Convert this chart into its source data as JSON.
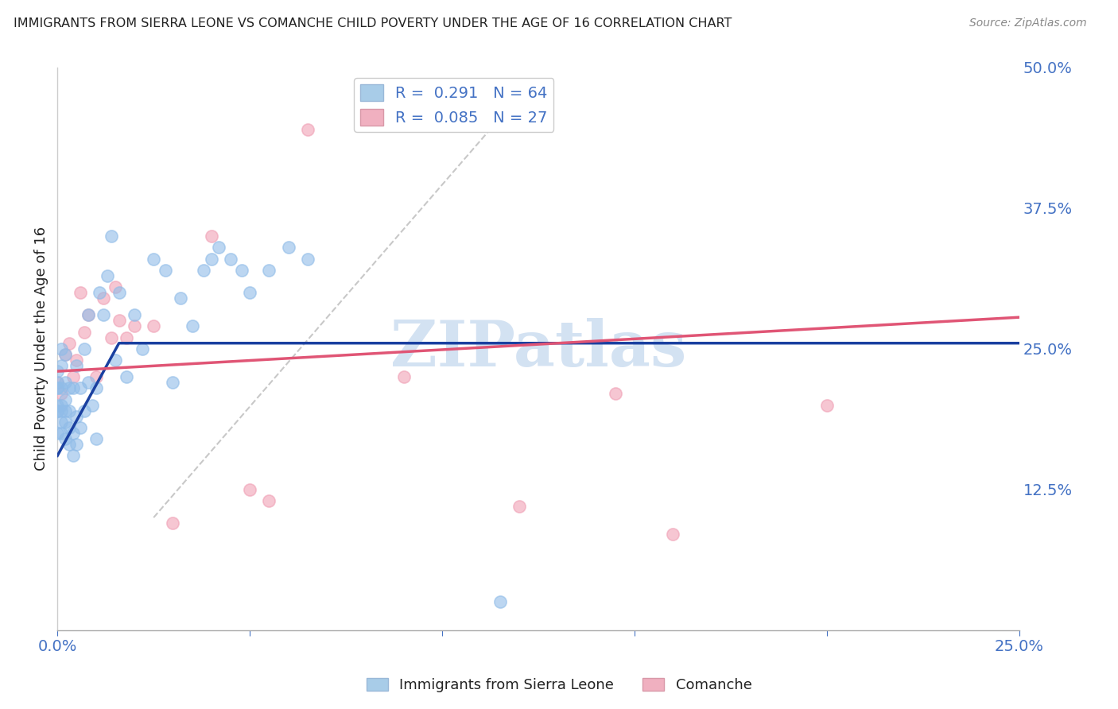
{
  "title": "IMMIGRANTS FROM SIERRA LEONE VS COMANCHE CHILD POVERTY UNDER THE AGE OF 16 CORRELATION CHART",
  "source": "Source: ZipAtlas.com",
  "ylabel": "Child Poverty Under the Age of 16",
  "xlim": [
    0.0,
    0.25
  ],
  "ylim": [
    0.0,
    0.5
  ],
  "y_ticks_right": [
    0.0,
    0.125,
    0.25,
    0.375,
    0.5
  ],
  "y_tick_labels_right": [
    "",
    "12.5%",
    "25.0%",
    "37.5%",
    "50.0%"
  ],
  "x_ticks": [
    0.0,
    0.05,
    0.1,
    0.15,
    0.2,
    0.25
  ],
  "x_tick_labels": [
    "0.0%",
    "",
    "",
    "",
    "",
    "25.0%"
  ],
  "legend1_label": "R =  0.291   N = 64",
  "legend2_label": "R =  0.085   N = 27",
  "legend_patch_blue": "#a8cce8",
  "legend_patch_pink": "#f0b0c0",
  "watermark": "ZIPatlas",
  "blue_scatter_x": [
    0.0,
    0.0,
    0.0,
    0.0,
    0.0,
    0.0,
    0.0,
    0.0,
    0.001,
    0.001,
    0.001,
    0.001,
    0.001,
    0.001,
    0.001,
    0.002,
    0.002,
    0.002,
    0.002,
    0.002,
    0.002,
    0.003,
    0.003,
    0.003,
    0.003,
    0.004,
    0.004,
    0.004,
    0.005,
    0.005,
    0.005,
    0.006,
    0.006,
    0.007,
    0.007,
    0.008,
    0.008,
    0.009,
    0.01,
    0.01,
    0.011,
    0.012,
    0.013,
    0.014,
    0.015,
    0.016,
    0.018,
    0.02,
    0.022,
    0.025,
    0.028,
    0.03,
    0.032,
    0.035,
    0.038,
    0.04,
    0.042,
    0.045,
    0.048,
    0.05,
    0.055,
    0.06,
    0.065,
    0.115
  ],
  "blue_scatter_y": [
    0.195,
    0.22,
    0.215,
    0.2,
    0.175,
    0.195,
    0.215,
    0.23,
    0.175,
    0.185,
    0.195,
    0.2,
    0.215,
    0.235,
    0.25,
    0.17,
    0.185,
    0.195,
    0.205,
    0.22,
    0.245,
    0.165,
    0.18,
    0.195,
    0.215,
    0.155,
    0.175,
    0.215,
    0.165,
    0.19,
    0.235,
    0.18,
    0.215,
    0.195,
    0.25,
    0.22,
    0.28,
    0.2,
    0.17,
    0.215,
    0.3,
    0.28,
    0.315,
    0.35,
    0.24,
    0.3,
    0.225,
    0.28,
    0.25,
    0.33,
    0.32,
    0.22,
    0.295,
    0.27,
    0.32,
    0.33,
    0.34,
    0.33,
    0.32,
    0.3,
    0.32,
    0.34,
    0.33,
    0.025
  ],
  "pink_scatter_x": [
    0.0,
    0.001,
    0.002,
    0.003,
    0.004,
    0.005,
    0.006,
    0.007,
    0.008,
    0.01,
    0.012,
    0.014,
    0.015,
    0.016,
    0.018,
    0.02,
    0.025,
    0.03,
    0.04,
    0.05,
    0.055,
    0.065,
    0.09,
    0.12,
    0.145,
    0.16,
    0.2
  ],
  "pink_scatter_y": [
    0.22,
    0.21,
    0.245,
    0.255,
    0.225,
    0.24,
    0.3,
    0.265,
    0.28,
    0.225,
    0.295,
    0.26,
    0.305,
    0.275,
    0.26,
    0.27,
    0.27,
    0.095,
    0.35,
    0.125,
    0.115,
    0.445,
    0.225,
    0.11,
    0.21,
    0.085,
    0.2
  ],
  "blue_line_x": [
    0.0,
    0.016,
    0.25
  ],
  "blue_line_y": [
    0.155,
    0.255,
    0.255
  ],
  "pink_line_x": [
    0.0,
    0.25
  ],
  "pink_line_y": [
    0.23,
    0.278
  ],
  "ref_line_x": [
    0.025,
    0.115
  ],
  "ref_line_y": [
    0.1,
    0.455
  ],
  "scatter_alpha": 0.6,
  "scatter_size": 120,
  "scatter_color_blue": "#90bce8",
  "scatter_color_pink": "#f0a0b5",
  "line_color_blue": "#1a40a0",
  "line_color_pink": "#e05575",
  "ref_line_color": "#c8c8c8",
  "grid_color": "#cccccc",
  "title_color": "#222222",
  "tick_color_right": "#4472c4",
  "watermark_color": "#ccddf0",
  "background_color": "#ffffff",
  "figsize": [
    14.06,
    8.92
  ],
  "dpi": 100
}
